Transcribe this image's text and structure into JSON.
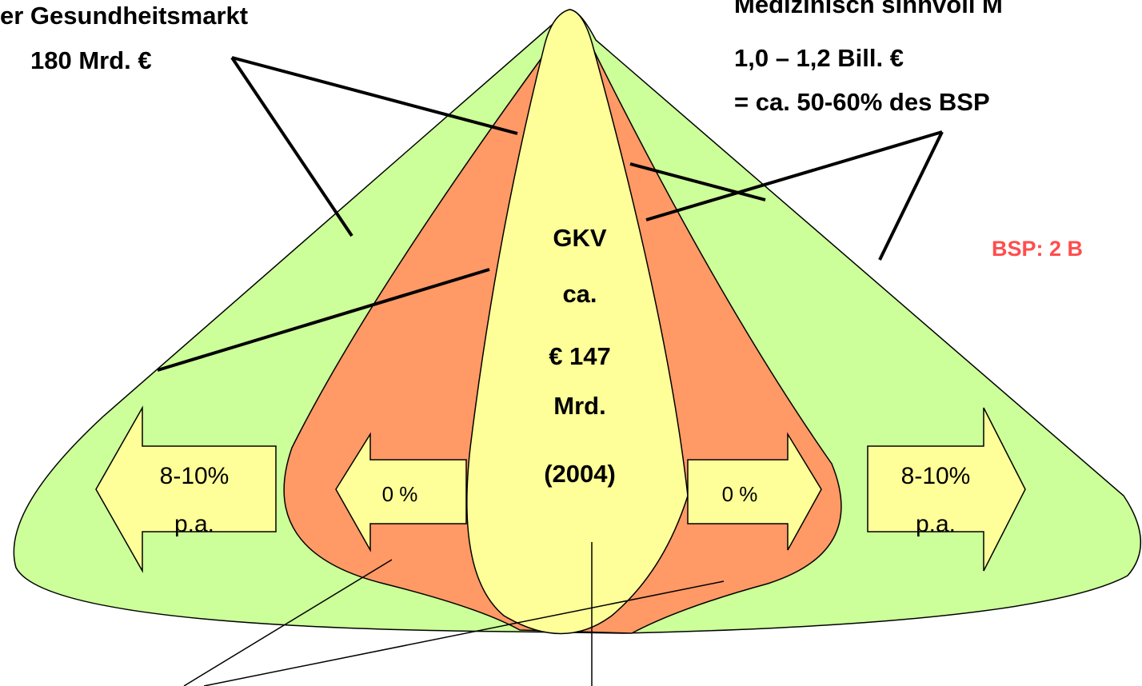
{
  "top_left": {
    "title": "er Gesundheitsmarkt",
    "amount": "180 Mrd. €"
  },
  "top_right": {
    "title": "Medizinisch sinnvoll M",
    "amount": "1,0 – 1,2 Bill. €",
    "share": "= ca. 50-60% des BSP"
  },
  "side_note": "BSP: 2 B",
  "center": {
    "lines": [
      "GKV",
      "ca.",
      "€ 147",
      "Mrd.",
      "(2004)"
    ]
  },
  "outer_arrows": {
    "rate": "8-10%",
    "unit": "p.a."
  },
  "inner_arrows": {
    "rate": "0 %"
  }
}
